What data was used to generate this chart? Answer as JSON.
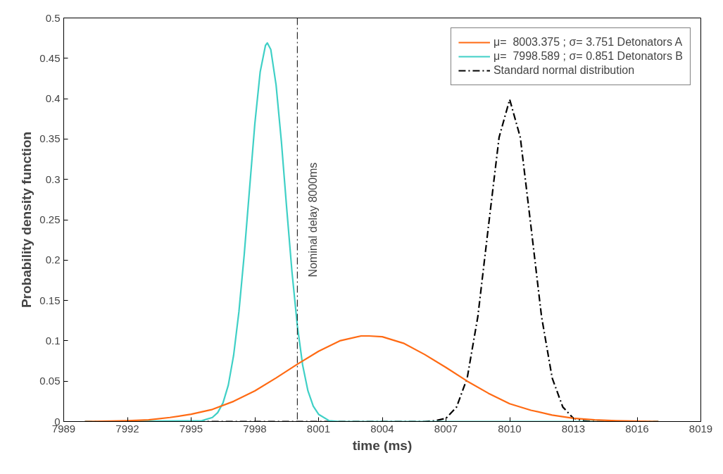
{
  "chart_data": {
    "type": "line",
    "xlabel": "time (ms)",
    "ylabel": "Probability density function",
    "xlim": [
      7989,
      8019
    ],
    "xticks": [
      7989,
      7992,
      7995,
      7998,
      8001,
      8004,
      8007,
      8010,
      8013,
      8016,
      8019
    ],
    "ylim": [
      0,
      0.5
    ],
    "yticks": [
      0,
      0.05,
      0.1,
      0.15,
      0.2,
      0.25,
      0.3,
      0.35,
      0.4,
      0.45,
      0.5
    ],
    "grid": false,
    "legend": "top right",
    "line_style": "solid",
    "marker": "none",
    "ref_lines": [
      {
        "axis": "x",
        "value": 8000,
        "label": "Nominal delay 8000ms",
        "color": "#000000",
        "line_style": "dashed"
      }
    ],
    "series": [
      {
        "name": "μ=  8003.375 ; σ= 3.751 Detonators A",
        "color": "#ff6a13",
        "x": [
          7990,
          7992,
          7993,
          7994,
          7995,
          7996,
          7997,
          7998,
          7999,
          8000,
          8001,
          8002,
          8003,
          8003.375,
          8004,
          8005,
          8006,
          8007,
          8008,
          8009,
          8010,
          8011,
          8012,
          8013,
          8014,
          8015,
          8017
        ],
        "values": [
          0,
          0.001,
          0.002,
          0.005,
          0.009,
          0.015,
          0.025,
          0.038,
          0.054,
          0.071,
          0.087,
          0.1,
          0.106,
          0.106,
          0.105,
          0.097,
          0.083,
          0.067,
          0.05,
          0.035,
          0.022,
          0.014,
          0.008,
          0.004,
          0.002,
          0.001,
          0
        ]
      },
      {
        "name": "μ=  7998.589 ; σ= 0.851 Detonators B",
        "color": "#3fd0c6",
        "x": [
          7990,
          7995.5,
          7996,
          7996.25,
          7996.5,
          7996.75,
          7997,
          7997.25,
          7997.5,
          7997.75,
          7998,
          7998.25,
          7998.5,
          7998.589,
          7998.75,
          7999,
          7999.25,
          7999.5,
          7999.75,
          8000,
          8000.25,
          8000.5,
          8000.75,
          8001,
          8001.5,
          8002,
          8017
        ],
        "values": [
          0,
          0.001,
          0.005,
          0.011,
          0.023,
          0.045,
          0.082,
          0.136,
          0.207,
          0.288,
          0.369,
          0.433,
          0.466,
          0.469,
          0.461,
          0.417,
          0.347,
          0.264,
          0.185,
          0.119,
          0.07,
          0.038,
          0.019,
          0.009,
          0.001,
          0,
          0
        ]
      },
      {
        "name": "Standard normal distribution",
        "color": "#000000",
        "line_style": "dashed",
        "x": [
          7990,
          8006,
          8006.5,
          8007,
          8007.5,
          8008,
          8008.5,
          8009,
          8009.5,
          8010,
          8010.5,
          8011,
          8011.5,
          8012,
          8012.5,
          8013,
          8013.5,
          8014,
          8017
        ],
        "values": [
          0,
          0,
          0.001,
          0.004,
          0.018,
          0.054,
          0.13,
          0.242,
          0.352,
          0.399,
          0.352,
          0.242,
          0.13,
          0.054,
          0.018,
          0.004,
          0.001,
          0,
          0
        ]
      }
    ]
  }
}
